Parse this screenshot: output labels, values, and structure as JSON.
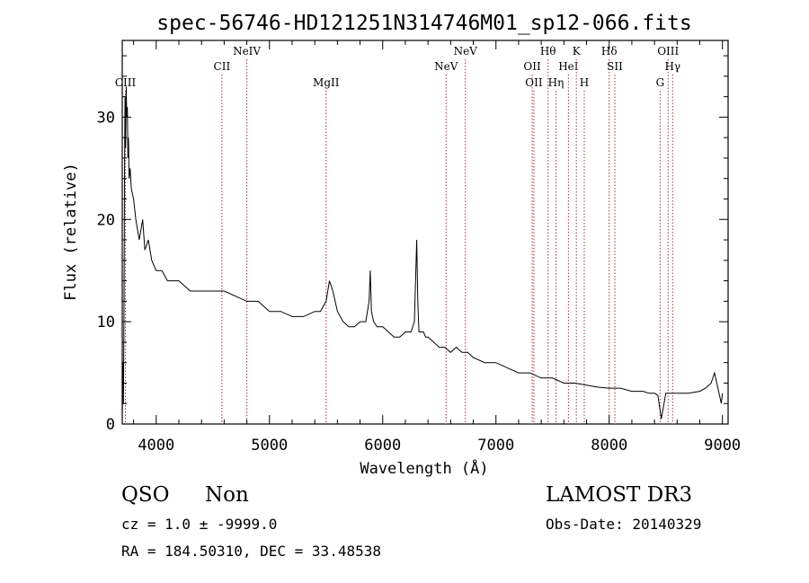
{
  "chart_data": {
    "type": "line",
    "title": "spec-56746-HD121251N314746M01_sp12-066.fits",
    "xlabel": "Wavelength (Å)",
    "ylabel": "Flux (relative)",
    "xlim": [
      3700,
      9050
    ],
    "ylim": [
      0,
      37.5
    ],
    "xticks": [
      4000,
      5000,
      6000,
      7000,
      8000,
      9000
    ],
    "yticks": [
      0,
      10,
      20,
      30
    ],
    "grid": false,
    "series": [
      {
        "color": "#000000",
        "x": [
          3700,
          3705,
          3710,
          3715,
          3720,
          3725,
          3730,
          3735,
          3740,
          3745,
          3750,
          3755,
          3760,
          3770,
          3780,
          3800,
          3820,
          3850,
          3880,
          3900,
          3930,
          3960,
          4000,
          4050,
          4100,
          4150,
          4200,
          4300,
          4400,
          4500,
          4600,
          4700,
          4800,
          4900,
          5000,
          5100,
          5200,
          5300,
          5400,
          5450,
          5500,
          5530,
          5560,
          5600,
          5650,
          5700,
          5750,
          5800,
          5850,
          5880,
          5890,
          5900,
          5920,
          5950,
          6000,
          6050,
          6100,
          6150,
          6200,
          6250,
          6280,
          6300,
          6310,
          6320,
          6340,
          6360,
          6380,
          6400,
          6450,
          6500,
          6550,
          6600,
          6650,
          6700,
          6750,
          6800,
          6900,
          7000,
          7100,
          7200,
          7300,
          7400,
          7500,
          7600,
          7700,
          7800,
          7900,
          8000,
          8100,
          8200,
          8300,
          8350,
          8400,
          8430,
          8460,
          8500,
          8550,
          8600,
          8700,
          8800,
          8850,
          8900,
          8930,
          8960,
          8990,
          9000
        ],
        "y": [
          0.5,
          6,
          2,
          10,
          24,
          32,
          27,
          33,
          30,
          31,
          26,
          28,
          24,
          25,
          23,
          22,
          20,
          18,
          20,
          17,
          18,
          16,
          15,
          15,
          14,
          14,
          14,
          13,
          13,
          13,
          13,
          12.5,
          12,
          12,
          11,
          11,
          10.5,
          10.5,
          11,
          11,
          12,
          14,
          13,
          11,
          10,
          9.5,
          9.5,
          10,
          10,
          12,
          15,
          11,
          10,
          9.5,
          9.5,
          9,
          8.5,
          8.5,
          9,
          9,
          10,
          18,
          12,
          9,
          9,
          9,
          8.5,
          8.5,
          8,
          7.5,
          7.5,
          7,
          7.5,
          7,
          7,
          6.5,
          6,
          6,
          5.5,
          5,
          5,
          4.5,
          4.5,
          4,
          4,
          3.8,
          3.6,
          3.5,
          3.5,
          3.2,
          3.2,
          3,
          3,
          2.8,
          0.5,
          3,
          3,
          3,
          3,
          3.2,
          3.5,
          4,
          5,
          3.5,
          2,
          3
        ]
      }
    ],
    "lines": [
      {
        "label": "CIII",
        "x": 3728,
        "row": 3
      },
      {
        "label": "CII",
        "x": 4580,
        "row": 2
      },
      {
        "label": "NeIV",
        "x": 4800,
        "row": 1
      },
      {
        "label": "MgII",
        "x": 5500,
        "row": 3
      },
      {
        "label": "NeV",
        "x": 6560,
        "row": 2
      },
      {
        "label": "NeV",
        "x": 6730,
        "row": 1
      },
      {
        "label": "OII",
        "x": 7320,
        "row": 2
      },
      {
        "label": "OII",
        "x": 7335,
        "row": 3
      },
      {
        "label": "Hθ",
        "x": 7460,
        "row": 1
      },
      {
        "label": "Hη",
        "x": 7530,
        "row": 3
      },
      {
        "label": "HeI",
        "x": 7640,
        "row": 2
      },
      {
        "label": "K",
        "x": 7710,
        "row": 1
      },
      {
        "label": "H",
        "x": 7780,
        "row": 3
      },
      {
        "label": "Hδ",
        "x": 8000,
        "row": 1
      },
      {
        "label": "SII",
        "x": 8050,
        "row": 2
      },
      {
        "label": "G",
        "x": 8450,
        "row": 3
      },
      {
        "label": "OIII",
        "x": 8520,
        "row": 1
      },
      {
        "label": "Hγ",
        "x": 8560,
        "row": 2
      }
    ]
  },
  "info": {
    "class": "QSO",
    "subclass": "Non",
    "survey": "LAMOST DR3",
    "cz": "cz = 1.0 ± -9999.0",
    "obs_date": "Obs-Date: 20140329",
    "radec": "RA = 184.50310, DEC =  33.48538"
  },
  "colors": {
    "spectrum": "#000000",
    "line_marker": "#b03030"
  }
}
